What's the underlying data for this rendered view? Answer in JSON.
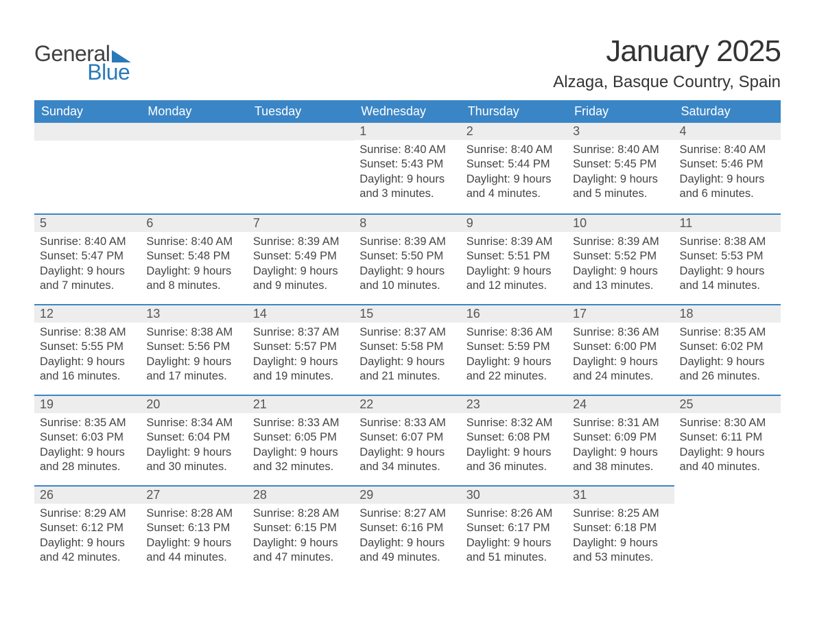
{
  "brand": {
    "general": "General",
    "blue": "Blue"
  },
  "header": {
    "month_title": "January 2025",
    "location": "Alzaga, Basque Country, Spain"
  },
  "colors": {
    "header_bg": "#3a85c6",
    "header_text": "#ffffff",
    "daynum_bg": "#ededed",
    "border_top": "#3a85c6",
    "body_text": "#444444",
    "logo_gray": "#404040",
    "logo_blue": "#2a7ab8"
  },
  "day_labels": [
    "Sunday",
    "Monday",
    "Tuesday",
    "Wednesday",
    "Thursday",
    "Friday",
    "Saturday"
  ],
  "weeks": [
    [
      null,
      null,
      null,
      {
        "n": "1",
        "sunrise": "Sunrise: 8:40 AM",
        "sunset": "Sunset: 5:43 PM",
        "day1": "Daylight: 9 hours",
        "day2": "and 3 minutes."
      },
      {
        "n": "2",
        "sunrise": "Sunrise: 8:40 AM",
        "sunset": "Sunset: 5:44 PM",
        "day1": "Daylight: 9 hours",
        "day2": "and 4 minutes."
      },
      {
        "n": "3",
        "sunrise": "Sunrise: 8:40 AM",
        "sunset": "Sunset: 5:45 PM",
        "day1": "Daylight: 9 hours",
        "day2": "and 5 minutes."
      },
      {
        "n": "4",
        "sunrise": "Sunrise: 8:40 AM",
        "sunset": "Sunset: 5:46 PM",
        "day1": "Daylight: 9 hours",
        "day2": "and 6 minutes."
      }
    ],
    [
      {
        "n": "5",
        "sunrise": "Sunrise: 8:40 AM",
        "sunset": "Sunset: 5:47 PM",
        "day1": "Daylight: 9 hours",
        "day2": "and 7 minutes."
      },
      {
        "n": "6",
        "sunrise": "Sunrise: 8:40 AM",
        "sunset": "Sunset: 5:48 PM",
        "day1": "Daylight: 9 hours",
        "day2": "and 8 minutes."
      },
      {
        "n": "7",
        "sunrise": "Sunrise: 8:39 AM",
        "sunset": "Sunset: 5:49 PM",
        "day1": "Daylight: 9 hours",
        "day2": "and 9 minutes."
      },
      {
        "n": "8",
        "sunrise": "Sunrise: 8:39 AM",
        "sunset": "Sunset: 5:50 PM",
        "day1": "Daylight: 9 hours",
        "day2": "and 10 minutes."
      },
      {
        "n": "9",
        "sunrise": "Sunrise: 8:39 AM",
        "sunset": "Sunset: 5:51 PM",
        "day1": "Daylight: 9 hours",
        "day2": "and 12 minutes."
      },
      {
        "n": "10",
        "sunrise": "Sunrise: 8:39 AM",
        "sunset": "Sunset: 5:52 PM",
        "day1": "Daylight: 9 hours",
        "day2": "and 13 minutes."
      },
      {
        "n": "11",
        "sunrise": "Sunrise: 8:38 AM",
        "sunset": "Sunset: 5:53 PM",
        "day1": "Daylight: 9 hours",
        "day2": "and 14 minutes."
      }
    ],
    [
      {
        "n": "12",
        "sunrise": "Sunrise: 8:38 AM",
        "sunset": "Sunset: 5:55 PM",
        "day1": "Daylight: 9 hours",
        "day2": "and 16 minutes."
      },
      {
        "n": "13",
        "sunrise": "Sunrise: 8:38 AM",
        "sunset": "Sunset: 5:56 PM",
        "day1": "Daylight: 9 hours",
        "day2": "and 17 minutes."
      },
      {
        "n": "14",
        "sunrise": "Sunrise: 8:37 AM",
        "sunset": "Sunset: 5:57 PM",
        "day1": "Daylight: 9 hours",
        "day2": "and 19 minutes."
      },
      {
        "n": "15",
        "sunrise": "Sunrise: 8:37 AM",
        "sunset": "Sunset: 5:58 PM",
        "day1": "Daylight: 9 hours",
        "day2": "and 21 minutes."
      },
      {
        "n": "16",
        "sunrise": "Sunrise: 8:36 AM",
        "sunset": "Sunset: 5:59 PM",
        "day1": "Daylight: 9 hours",
        "day2": "and 22 minutes."
      },
      {
        "n": "17",
        "sunrise": "Sunrise: 8:36 AM",
        "sunset": "Sunset: 6:00 PM",
        "day1": "Daylight: 9 hours",
        "day2": "and 24 minutes."
      },
      {
        "n": "18",
        "sunrise": "Sunrise: 8:35 AM",
        "sunset": "Sunset: 6:02 PM",
        "day1": "Daylight: 9 hours",
        "day2": "and 26 minutes."
      }
    ],
    [
      {
        "n": "19",
        "sunrise": "Sunrise: 8:35 AM",
        "sunset": "Sunset: 6:03 PM",
        "day1": "Daylight: 9 hours",
        "day2": "and 28 minutes."
      },
      {
        "n": "20",
        "sunrise": "Sunrise: 8:34 AM",
        "sunset": "Sunset: 6:04 PM",
        "day1": "Daylight: 9 hours",
        "day2": "and 30 minutes."
      },
      {
        "n": "21",
        "sunrise": "Sunrise: 8:33 AM",
        "sunset": "Sunset: 6:05 PM",
        "day1": "Daylight: 9 hours",
        "day2": "and 32 minutes."
      },
      {
        "n": "22",
        "sunrise": "Sunrise: 8:33 AM",
        "sunset": "Sunset: 6:07 PM",
        "day1": "Daylight: 9 hours",
        "day2": "and 34 minutes."
      },
      {
        "n": "23",
        "sunrise": "Sunrise: 8:32 AM",
        "sunset": "Sunset: 6:08 PM",
        "day1": "Daylight: 9 hours",
        "day2": "and 36 minutes."
      },
      {
        "n": "24",
        "sunrise": "Sunrise: 8:31 AM",
        "sunset": "Sunset: 6:09 PM",
        "day1": "Daylight: 9 hours",
        "day2": "and 38 minutes."
      },
      {
        "n": "25",
        "sunrise": "Sunrise: 8:30 AM",
        "sunset": "Sunset: 6:11 PM",
        "day1": "Daylight: 9 hours",
        "day2": "and 40 minutes."
      }
    ],
    [
      {
        "n": "26",
        "sunrise": "Sunrise: 8:29 AM",
        "sunset": "Sunset: 6:12 PM",
        "day1": "Daylight: 9 hours",
        "day2": "and 42 minutes."
      },
      {
        "n": "27",
        "sunrise": "Sunrise: 8:28 AM",
        "sunset": "Sunset: 6:13 PM",
        "day1": "Daylight: 9 hours",
        "day2": "and 44 minutes."
      },
      {
        "n": "28",
        "sunrise": "Sunrise: 8:28 AM",
        "sunset": "Sunset: 6:15 PM",
        "day1": "Daylight: 9 hours",
        "day2": "and 47 minutes."
      },
      {
        "n": "29",
        "sunrise": "Sunrise: 8:27 AM",
        "sunset": "Sunset: 6:16 PM",
        "day1": "Daylight: 9 hours",
        "day2": "and 49 minutes."
      },
      {
        "n": "30",
        "sunrise": "Sunrise: 8:26 AM",
        "sunset": "Sunset: 6:17 PM",
        "day1": "Daylight: 9 hours",
        "day2": "and 51 minutes."
      },
      {
        "n": "31",
        "sunrise": "Sunrise: 8:25 AM",
        "sunset": "Sunset: 6:18 PM",
        "day1": "Daylight: 9 hours",
        "day2": "and 53 minutes."
      },
      null
    ]
  ]
}
